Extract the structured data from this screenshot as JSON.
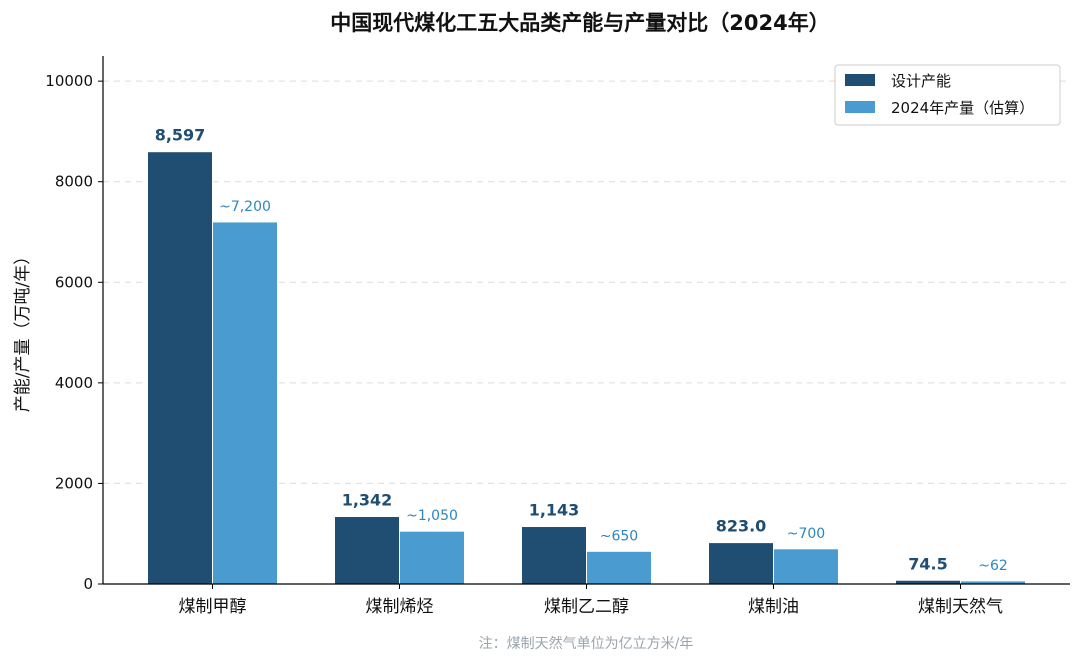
{
  "chart_data": {
    "type": "bar",
    "title": "中国现代煤化工五大品类产能与产量对比（2024年）",
    "xlabel": "",
    "ylabel": "产能/产量（万吨/年）",
    "ylim": [
      0,
      10500
    ],
    "yticks": [
      0,
      2000,
      4000,
      6000,
      8000,
      10000
    ],
    "grid": true,
    "legend_position": "top-right",
    "categories": [
      "煤制甲醇",
      "煤制烯烃",
      "煤制乙二醇",
      "煤制油",
      "煤制天然气"
    ],
    "series": [
      {
        "name": "设计产能",
        "color": "#1f4e72",
        "values": [
          8597,
          1342,
          1143,
          823.0,
          74.5
        ],
        "labels": [
          "8,597",
          "1,342",
          "1,143",
          "823.0",
          "74.5"
        ]
      },
      {
        "name": "2024年产量（估算）",
        "color": "#4a9bcf",
        "values": [
          7200,
          1050,
          650,
          700,
          62
        ],
        "labels": [
          "~7,200",
          "~1,050",
          "~650",
          "~700",
          "~62"
        ]
      }
    ],
    "footnote": "注：煤制天然气单位为亿立方米/年"
  }
}
